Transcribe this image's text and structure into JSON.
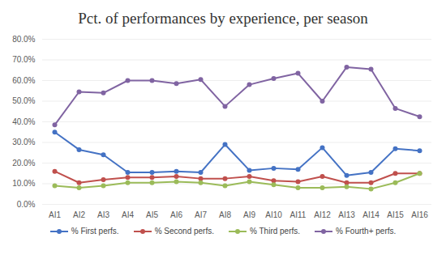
{
  "chart_data": {
    "type": "line",
    "title": "Pct. of performances by experience, per season",
    "categories": [
      "AI1",
      "AI2",
      "AI3",
      "AI4",
      "AI5",
      "AI6",
      "AI7",
      "AI8",
      "AI9",
      "AI10",
      "AI11",
      "AI12",
      "AI13",
      "AI14",
      "AI15",
      "AI16"
    ],
    "series": [
      {
        "name": "% First perfs.",
        "color": "#4472c4",
        "marker": "circle",
        "line_style": "solid",
        "values": [
          35,
          26.5,
          24,
          15.5,
          15.5,
          16,
          15.5,
          29,
          16.5,
          17.5,
          17,
          27.5,
          14,
          15.5,
          27,
          26
        ]
      },
      {
        "name": "% Second perfs.",
        "color": "#c0504d",
        "marker": "circle",
        "line_style": "solid",
        "values": [
          16,
          10.5,
          12,
          13,
          13,
          13.5,
          12.5,
          12.5,
          13.5,
          11.5,
          11,
          13.5,
          10.5,
          10.5,
          15,
          15
        ]
      },
      {
        "name": "% Third perfs.",
        "color": "#9bbb59",
        "marker": "circle",
        "line_style": "solid",
        "values": [
          9,
          8,
          9,
          10.5,
          10.5,
          11,
          10.5,
          9,
          11,
          9.5,
          8,
          8,
          8.5,
          7.5,
          10.5,
          15
        ]
      },
      {
        "name": "% Fourth+ perfs.",
        "color": "#8064a2",
        "marker": "circle",
        "line_style": "solid",
        "values": [
          38.5,
          54.5,
          54,
          60,
          60,
          58.5,
          60.5,
          47.5,
          58,
          61,
          63.5,
          50,
          66.5,
          65.5,
          46.5,
          42.5
        ]
      }
    ],
    "ylim": [
      0,
      80
    ],
    "yticks": [
      {
        "value": 0,
        "label": "0.0%"
      },
      {
        "value": 10,
        "label": "10.0%"
      },
      {
        "value": 20,
        "label": "20.0%"
      },
      {
        "value": 30,
        "label": "30.0%"
      },
      {
        "value": 40,
        "label": "40.0%"
      },
      {
        "value": 50,
        "label": "50.0%"
      },
      {
        "value": 60,
        "label": "60.0%"
      },
      {
        "value": 70,
        "label": "70.0%"
      },
      {
        "value": 80,
        "label": "80.0%"
      }
    ],
    "grid": true,
    "legend": "bottom"
  }
}
